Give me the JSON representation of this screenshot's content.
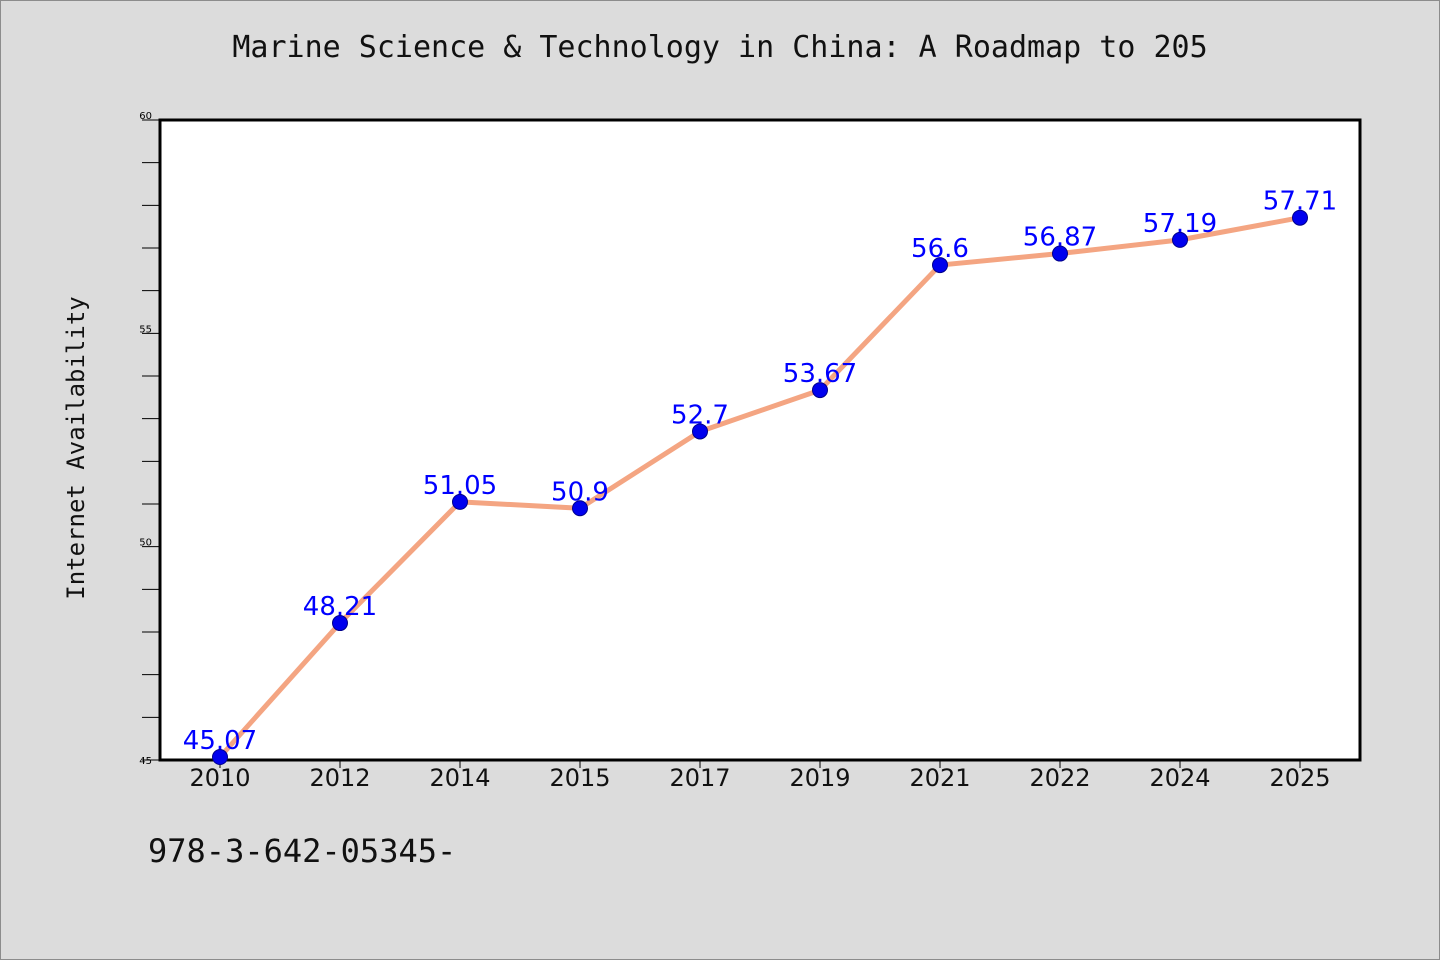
{
  "chart_data": {
    "type": "line",
    "title": "Marine Science & Technology in China: A Roadmap to 205",
    "ylabel": "Internet Availability",
    "xlabel": "",
    "categories": [
      "2010",
      "2012",
      "2014",
      "2015",
      "2017",
      "2019",
      "2021",
      "2022",
      "2024",
      "2025"
    ],
    "series": [
      {
        "values": [
          45.07,
          48.21,
          51.05,
          50.9,
          52.7,
          53.67,
          56.6,
          56.87,
          57.19,
          57.71
        ],
        "data_labels": [
          "45.07",
          "48.21",
          "51.05",
          "50.9",
          "52.7",
          "53.67",
          "56.6",
          "56.87",
          "57.19",
          "57.71"
        ]
      }
    ],
    "ylim": [
      45,
      60
    ],
    "yticks": [
      "45",
      "50",
      "55",
      "60"
    ],
    "grid": false,
    "line_color": "#f4a582",
    "marker_color": "#0000ee",
    "label_color": "#0000ff"
  },
  "footer": {
    "text": "978-3-642-05345-"
  }
}
